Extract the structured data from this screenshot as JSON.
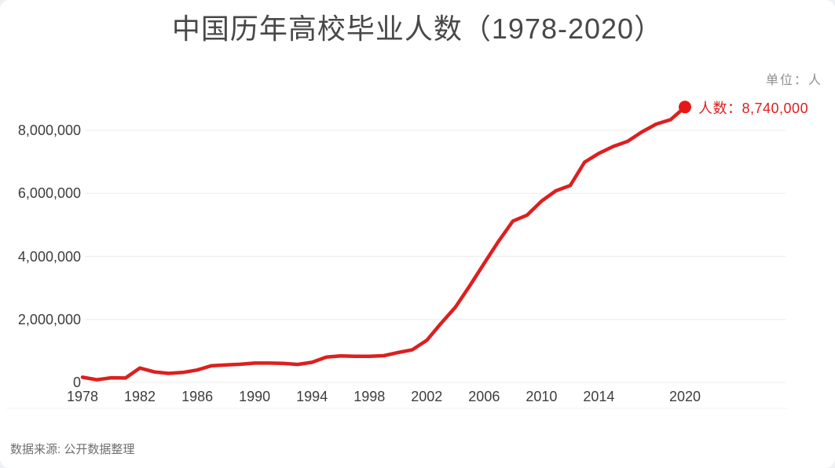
{
  "page": {
    "title": "中国历年高校毕业人数（1978-2020）",
    "unit_label": "单位：人",
    "source_note": "数据来源: 公开数据整理"
  },
  "chart_data": {
    "type": "line",
    "title": "中国历年高校毕业人数（1978-2020）",
    "unit": "人",
    "xlabel": "",
    "ylabel": "",
    "x_range": [
      1978,
      2020
    ],
    "y_range": [
      0,
      9000000
    ],
    "grid": "horizontal",
    "legend": "none",
    "colors": {
      "line": "#dd1f1f",
      "dot": "#e61717",
      "annotation": "#dd1f1f",
      "gridline": "#efefef",
      "divider": "#f3f3f3"
    },
    "xticks": [
      {
        "year": 1978,
        "label": "1978"
      },
      {
        "year": 1982,
        "label": "1982"
      },
      {
        "year": 1986,
        "label": "1986"
      },
      {
        "year": 1990,
        "label": "1990"
      },
      {
        "year": 1994,
        "label": "1994"
      },
      {
        "year": 1998,
        "label": "1998"
      },
      {
        "year": 2002,
        "label": "2002"
      },
      {
        "year": 2006,
        "label": "2006"
      },
      {
        "year": 2010,
        "label": "2010"
      },
      {
        "year": 2014,
        "label": "2014"
      },
      {
        "year": 2020,
        "label": "2020"
      }
    ],
    "yticks": [
      {
        "value": 0,
        "label": "0"
      },
      {
        "value": 2000000,
        "label": "2,000,000"
      },
      {
        "value": 4000000,
        "label": "4,000,000"
      },
      {
        "value": 6000000,
        "label": "6,000,000"
      },
      {
        "value": 8000000,
        "label": "8,000,000"
      }
    ],
    "series": [
      {
        "name": "人数",
        "x": [
          1978,
          1979,
          1980,
          1981,
          1982,
          1983,
          1984,
          1985,
          1986,
          1987,
          1988,
          1989,
          1990,
          1991,
          1992,
          1993,
          1994,
          1995,
          1996,
          1997,
          1998,
          1999,
          2000,
          2001,
          2002,
          2003,
          2004,
          2005,
          2006,
          2007,
          2008,
          2009,
          2010,
          2011,
          2012,
          2013,
          2014,
          2015,
          2016,
          2017,
          2018,
          2019,
          2020
        ],
        "values": [
          165000,
          85000,
          147000,
          140000,
          457000,
          335000,
          287000,
          316000,
          393000,
          532000,
          553000,
          576000,
          614000,
          614000,
          604000,
          571000,
          637000,
          805000,
          839000,
          829000,
          830000,
          848000,
          950000,
          1036000,
          1337000,
          1877000,
          2391000,
          3068000,
          3775000,
          4477000,
          5119000,
          5311000,
          5754000,
          6082000,
          6247000,
          6990000,
          7270000,
          7490000,
          7650000,
          7950000,
          8200000,
          8340000,
          8740000
        ]
      }
    ],
    "endpoint": {
      "year": 2020,
      "value": 8740000,
      "label": "人数：8,740,000"
    }
  }
}
